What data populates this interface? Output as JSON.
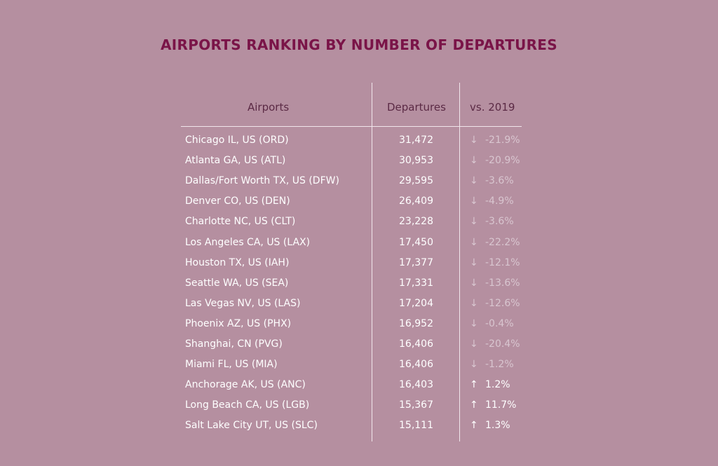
{
  "chart_data": {
    "type": "table",
    "title": "AIRPORTS RANKING BY NUMBER OF DEPARTURES",
    "columns": [
      "Airports",
      "Departures",
      "vs. 2019"
    ],
    "rows": [
      {
        "airport": "Chicago IL, US (ORD)",
        "departures": "31,472",
        "arrow": "↓",
        "change": "-21.9%",
        "direction": "down"
      },
      {
        "airport": "Atlanta GA, US (ATL)",
        "departures": "30,953",
        "arrow": "↓",
        "change": "-20.9%",
        "direction": "down"
      },
      {
        "airport": "Dallas/Fort Worth TX, US (DFW)",
        "departures": "29,595",
        "arrow": "↓",
        "change": "-3.6%",
        "direction": "down"
      },
      {
        "airport": "Denver CO, US (DEN)",
        "departures": "26,409",
        "arrow": "↓",
        "change": "-4.9%",
        "direction": "down"
      },
      {
        "airport": "Charlotte NC, US (CLT)",
        "departures": "23,228",
        "arrow": "↓",
        "change": "-3.6%",
        "direction": "down"
      },
      {
        "airport": "Los Angeles CA, US (LAX)",
        "departures": "17,450",
        "arrow": "↓",
        "change": "-22.2%",
        "direction": "down"
      },
      {
        "airport": "Houston TX, US (IAH)",
        "departures": "17,377",
        "arrow": "↓",
        "change": "-12.1%",
        "direction": "down"
      },
      {
        "airport": "Seattle WA, US (SEA)",
        "departures": "17,331",
        "arrow": "↓",
        "change": "-13.6%",
        "direction": "down"
      },
      {
        "airport": "Las Vegas NV, US (LAS)",
        "departures": "17,204",
        "arrow": "↓",
        "change": "-12.6%",
        "direction": "down"
      },
      {
        "airport": "Phoenix AZ, US (PHX)",
        "departures": "16,952",
        "arrow": "↓",
        "change": "-0.4%",
        "direction": "down"
      },
      {
        "airport": "Shanghai, CN (PVG)",
        "departures": "16,406",
        "arrow": "↓",
        "change": "-20.4%",
        "direction": "down"
      },
      {
        "airport": "Miami FL, US (MIA)",
        "departures": "16,406",
        "arrow": "↓",
        "change": "-1.2%",
        "direction": "down"
      },
      {
        "airport": "Anchorage AK, US (ANC)",
        "departures": "16,403",
        "arrow": "↑",
        "change": "1.2%",
        "direction": "up"
      },
      {
        "airport": "Long Beach CA, US (LGB)",
        "departures": "15,367",
        "arrow": "↑",
        "change": "11.7%",
        "direction": "up"
      },
      {
        "airport": "Salt Lake City UT, US (SLC)",
        "departures": "15,111",
        "arrow": "↑",
        "change": "1.3%",
        "direction": "up"
      }
    ]
  },
  "colors": {
    "background": "#b58fa0",
    "title": "#7a1448",
    "header": "#5b2a45",
    "text": "#ffffff",
    "decrease": "#d9c6d0"
  }
}
